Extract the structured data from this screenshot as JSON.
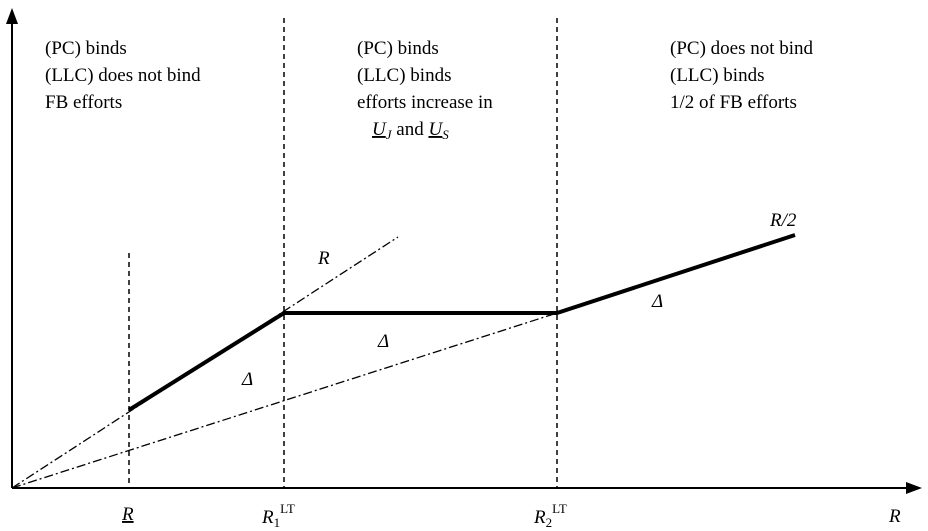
{
  "regions": [
    {
      "lines": [
        "(PC) binds",
        "(LLC) does not bind",
        "FB efforts"
      ]
    },
    {
      "lines": [
        "(PC) binds",
        "(LLC) binds",
        "efforts increase in"
      ],
      "last_line": {
        "u1": "U",
        "s1": "J",
        "mid": " and ",
        "u2": "U",
        "s2": "S"
      }
    },
    {
      "lines": [
        "(PC) does not bind",
        "(LLC) binds",
        "1/2 of FB efforts"
      ]
    }
  ],
  "curve_labels": {
    "r_line": "R",
    "r_half": "R/2",
    "delta_1": "Δ",
    "delta_2": "Δ",
    "delta_3": "Δ"
  },
  "x_axis": {
    "label": "R",
    "tick_r_bar": "R",
    "tick_r1": {
      "base": "R",
      "sub": "1",
      "sup": "LT"
    },
    "tick_r2": {
      "base": "R",
      "sub": "2",
      "sup": "LT"
    }
  }
}
